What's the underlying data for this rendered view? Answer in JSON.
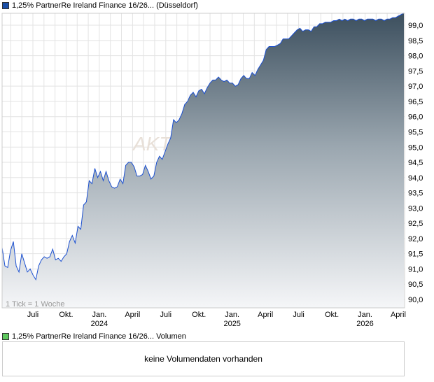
{
  "legend_top": {
    "label": "1,25% PartnerRe Ireland Finance 16/26... (Düsseldorf)",
    "color": "#1a4fa8"
  },
  "legend_volume": {
    "label": "1,25% PartnerRe Ireland Finance 16/26... Volumen",
    "color": "#5ec95e"
  },
  "volume_message": "keine Volumendaten vorhanden",
  "tick_note": "1 Tick = 1 Woche",
  "watermark": "AKTIEN",
  "chart_data": {
    "type": "area",
    "title": "1,25% PartnerRe Ireland Finance 16/26... (Düsseldorf)",
    "ylim": [
      90.0,
      99.4
    ],
    "yticks": [
      "90,0",
      "90,5",
      "91,0",
      "91,5",
      "92,0",
      "92,5",
      "93,0",
      "93,5",
      "94,0",
      "94,5",
      "95,0",
      "95,5",
      "96,0",
      "96,5",
      "97,0",
      "97,5",
      "98,0",
      "98,5",
      "99,0"
    ],
    "xticks": [
      [
        "Juli",
        ""
      ],
      [
        "Okt.",
        ""
      ],
      [
        "Jan.",
        "2024"
      ],
      [
        "April",
        ""
      ],
      [
        "Juli",
        ""
      ],
      [
        "Okt.",
        ""
      ],
      [
        "Jan.",
        "2025"
      ],
      [
        "April",
        ""
      ],
      [
        "Juli",
        ""
      ],
      [
        "Okt.",
        ""
      ],
      [
        "Jan.",
        "2026"
      ],
      [
        "April",
        ""
      ]
    ],
    "values": [
      91.7,
      91.1,
      91.05,
      91.6,
      91.9,
      91.1,
      90.9,
      91.5,
      91.2,
      90.9,
      91.0,
      90.8,
      90.65,
      91.1,
      91.3,
      91.4,
      91.35,
      91.4,
      91.65,
      91.3,
      91.35,
      91.25,
      91.4,
      91.5,
      91.9,
      92.1,
      91.85,
      92.4,
      92.3,
      93.1,
      93.2,
      93.9,
      93.8,
      94.3,
      94.0,
      94.2,
      93.9,
      94.2,
      93.9,
      93.7,
      93.65,
      93.7,
      93.95,
      93.8,
      94.4,
      94.5,
      94.5,
      94.35,
      94.05,
      94.05,
      94.1,
      94.4,
      94.2,
      93.95,
      94.05,
      94.5,
      94.7,
      94.6,
      94.85,
      95.1,
      95.3,
      95.9,
      95.8,
      95.9,
      96.1,
      96.4,
      96.5,
      96.7,
      96.8,
      96.65,
      96.85,
      96.9,
      96.75,
      96.95,
      97.1,
      97.2,
      97.2,
      97.3,
      97.2,
      97.15,
      97.2,
      97.1,
      97.1,
      97.0,
      97.05,
      97.25,
      97.35,
      97.25,
      97.25,
      97.45,
      97.35,
      97.55,
      97.7,
      97.85,
      98.2,
      98.3,
      98.3,
      98.3,
      98.35,
      98.4,
      98.55,
      98.55,
      98.55,
      98.65,
      98.75,
      98.85,
      98.9,
      98.8,
      98.85,
      98.85,
      98.8,
      98.95,
      98.95,
      99.05,
      99.05,
      99.1,
      99.1,
      99.1,
      99.15,
      99.15,
      99.2,
      99.15,
      99.2,
      99.15,
      99.2,
      99.2,
      99.15,
      99.2,
      99.2,
      99.15,
      99.2,
      99.2,
      99.2,
      99.15,
      99.2,
      99.2,
      99.15,
      99.2,
      99.2,
      99.25,
      99.25,
      99.3,
      99.35,
      99.4
    ]
  }
}
